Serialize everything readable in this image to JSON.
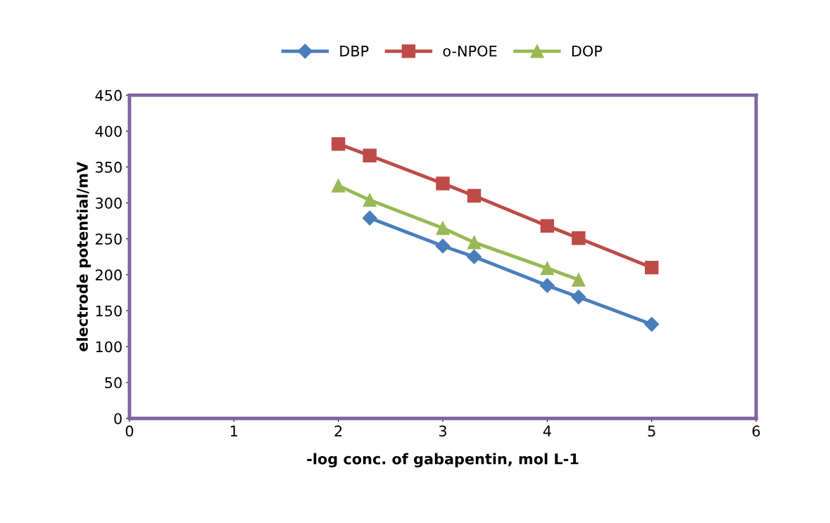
{
  "chart_data": {
    "type": "line",
    "xlabel": "-log conc. of gabapentin, mol L-1",
    "ylabel": "electrode potential/mV",
    "xlim": [
      0,
      6
    ],
    "xticks": [
      0,
      1,
      2,
      3,
      4,
      5,
      6
    ],
    "ylim": [
      0,
      450
    ],
    "yticks": [
      0,
      50,
      100,
      150,
      200,
      250,
      300,
      350,
      400,
      450
    ],
    "grid": false,
    "legend": "top",
    "line_style": "solid",
    "series": [
      {
        "name": "DBP",
        "color": "#4a7ebb",
        "marker": "diamond",
        "x": [
          2.3,
          3,
          3.3,
          4,
          4.3,
          5
        ],
        "values": [
          279,
          240,
          225,
          185,
          169,
          131
        ]
      },
      {
        "name": "o-NPOE",
        "color": "#be4b48",
        "marker": "square",
        "x": [
          2,
          2.3,
          3,
          3.3,
          4,
          4.3,
          5
        ],
        "values": [
          382,
          366,
          327,
          310,
          268,
          251,
          210
        ]
      },
      {
        "name": "DOP",
        "color": "#98b954",
        "marker": "triangle",
        "x": [
          2,
          2.3,
          3,
          3.3,
          4,
          4.3
        ],
        "values": [
          324,
          304,
          265,
          245,
          209,
          193
        ]
      }
    ]
  }
}
